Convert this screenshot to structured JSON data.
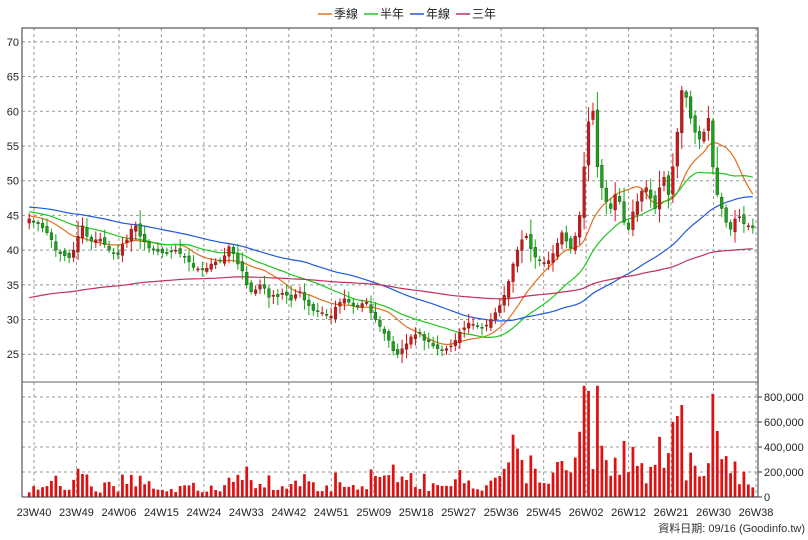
{
  "chart_data": {
    "type": "candlestick",
    "legend_position": "top-center",
    "legend": [
      {
        "name": "季線",
        "color": "#e2701c"
      },
      {
        "name": "半年",
        "color": "#1ec81e"
      },
      {
        "name": "年線",
        "color": "#1e5adc"
      },
      {
        "name": "三年",
        "color": "#c0305a"
      }
    ],
    "colors": {
      "up": "#dd1111",
      "down": "#11aa11",
      "volume": "#dd1111",
      "grid": "#999999"
    },
    "grid": true,
    "price_axis": {
      "range": [
        21,
        72
      ],
      "ticks": [
        25,
        30,
        35,
        40,
        45,
        50,
        55,
        60,
        65,
        70
      ]
    },
    "volume_axis": {
      "range": [
        0,
        920000
      ],
      "ticks": [
        0,
        200000,
        400000,
        600000,
        800000
      ],
      "tick_labels": [
        "0",
        "200,000",
        "400,000",
        "600,000",
        "800,000"
      ]
    },
    "x_tick_labels": [
      "23W40",
      "23W49",
      "24W06",
      "24W15",
      "24W24",
      "24W33",
      "24W42",
      "24W51",
      "25W09",
      "25W18",
      "25W27",
      "25W36",
      "25W45",
      "26W02",
      "26W12",
      "26W21",
      "26W30",
      "26W38"
    ],
    "footer": "資料日期: 09/16 (Goodinfo.tw)",
    "close": [
      44.5,
      44.0,
      43.8,
      43.2,
      42.5,
      41.5,
      40.0,
      39.5,
      39.2,
      38.9,
      40.0,
      42.0,
      43.5,
      42.0,
      41.3,
      41.5,
      41.6,
      40.8,
      40.0,
      39.5,
      39.3,
      40.8,
      41.5,
      43.0,
      43.5,
      42.0,
      41.2,
      40.3,
      40.0,
      39.8,
      39.6,
      39.5,
      39.8,
      40.0,
      39.5,
      39.0,
      38.3,
      37.5,
      37.3,
      37.2,
      37.4,
      38.0,
      38.3,
      38.5,
      39.2,
      40.5,
      39.5,
      38.0,
      37.0,
      35.0,
      34.0,
      34.3,
      35.0,
      34.5,
      33.2,
      33.5,
      33.3,
      33.8,
      33.5,
      32.8,
      33.6,
      34.0,
      32.8,
      32.0,
      31.3,
      31.2,
      31.0,
      30.6,
      30.5,
      31.8,
      32.5,
      33.0,
      32.5,
      32.0,
      31.8,
      32.3,
      32.5,
      31.0,
      30.0,
      29.0,
      28.0,
      27.0,
      25.5,
      25.0,
      25.8,
      26.5,
      27.5,
      27.8,
      28.0,
      27.0,
      26.8,
      26.2,
      25.8,
      25.5,
      25.8,
      26.2,
      27.0,
      28.2,
      28.8,
      29.5,
      29.3,
      29.0,
      28.8,
      29.2,
      30.0,
      31.0,
      32.0,
      33.5,
      35.5,
      38.0,
      40.0,
      41.5,
      42.0,
      40.2,
      39.0,
      38.5,
      38.2,
      38.5,
      39.5,
      41.0,
      42.5,
      41.3,
      40.3,
      42.0,
      45.0,
      52.0,
      58.5,
      60.0,
      52.0,
      49.0,
      47.0,
      46.0,
      48.0,
      47.0,
      44.0,
      43.0,
      45.5,
      47.0,
      48.5,
      49.0,
      47.5,
      46.0,
      49.0,
      50.5,
      48.0,
      52.0,
      57.0,
      63.0,
      62.0,
      59.0,
      57.0,
      56.0,
      57.0,
      59.0,
      52.0,
      48.0,
      46.0,
      44.0,
      43.0,
      44.5,
      44.8,
      43.8,
      43.5,
      43.2
    ]
  }
}
